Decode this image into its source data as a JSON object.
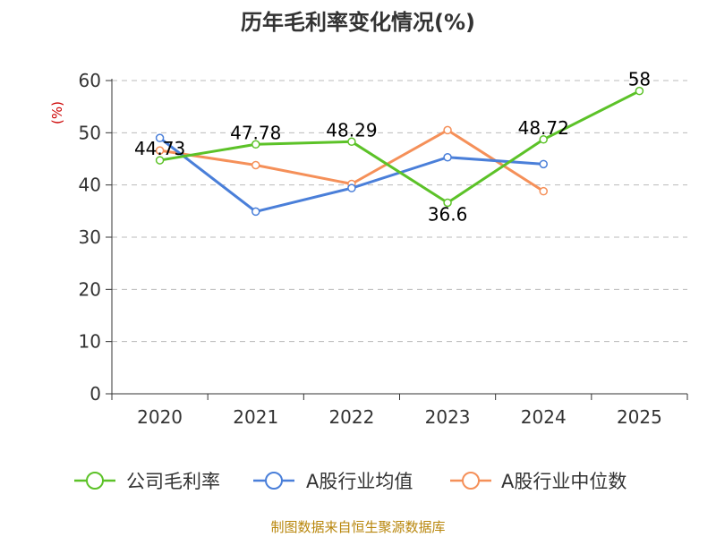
{
  "chart_data": {
    "type": "line",
    "title": "历年毛利率变化情况(%)",
    "ylabel": "(%)",
    "categories": [
      "2020",
      "2021",
      "2022",
      "2023",
      "2024",
      "2025"
    ],
    "yticks": [
      "0",
      "10",
      "20",
      "30",
      "40",
      "50",
      "60"
    ],
    "ylim": [
      0,
      60
    ],
    "grid": true,
    "legend_position": "bottom",
    "series": [
      {
        "name": "公司毛利率",
        "color": "#5cc228",
        "values": [
          44.73,
          47.78,
          48.29,
          36.6,
          48.72,
          58
        ],
        "labels": [
          "44.73",
          "47.78",
          "48.29",
          "36.6",
          "48.72",
          "58"
        ]
      },
      {
        "name": "A股行业均值",
        "color": "#4a7fd9",
        "values": [
          49.0,
          34.9,
          39.4,
          45.3,
          44.0,
          null
        ]
      },
      {
        "name": "A股行业中位数",
        "color": "#f59059",
        "values": [
          46.6,
          43.8,
          40.2,
          50.5,
          38.8,
          null
        ]
      }
    ]
  },
  "source": "制图数据来自恒生聚源数据库"
}
